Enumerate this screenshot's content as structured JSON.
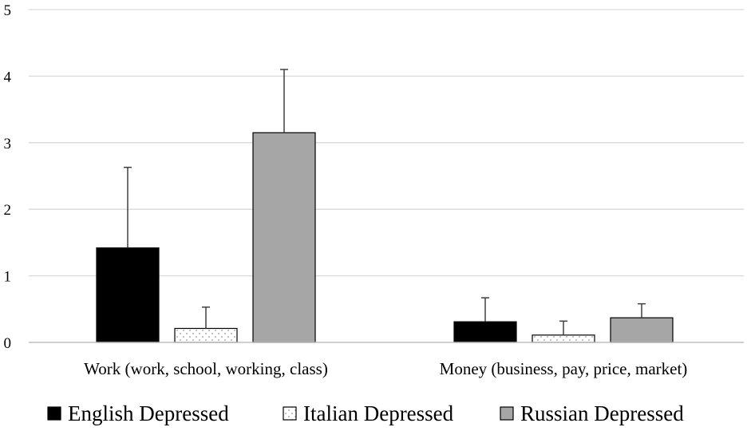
{
  "chart_data": {
    "type": "bar",
    "categories": [
      "Work (work, school, working, class)",
      "Money (business, pay, price, market)"
    ],
    "series": [
      {
        "name": "English Depressed",
        "values": [
          1.42,
          0.31
        ],
        "error": [
          1.21,
          0.36
        ],
        "fill": "#000000",
        "pattern": "solid"
      },
      {
        "name": "Italian Depressed",
        "values": [
          0.21,
          0.11
        ],
        "error": [
          0.32,
          0.21
        ],
        "fill": "#ffffff",
        "pattern": "dotted"
      },
      {
        "name": "Russian Depressed",
        "values": [
          3.15,
          0.37
        ],
        "error": [
          0.95,
          0.21
        ],
        "fill": "#a6a6a6",
        "pattern": "solid"
      }
    ],
    "yticks": [
      "0",
      "1",
      "2",
      "3",
      "4",
      "5"
    ],
    "ylim": [
      0,
      5
    ],
    "grid": true,
    "legend_position": "bottom",
    "title": "",
    "xlabel": "",
    "ylabel": ""
  }
}
